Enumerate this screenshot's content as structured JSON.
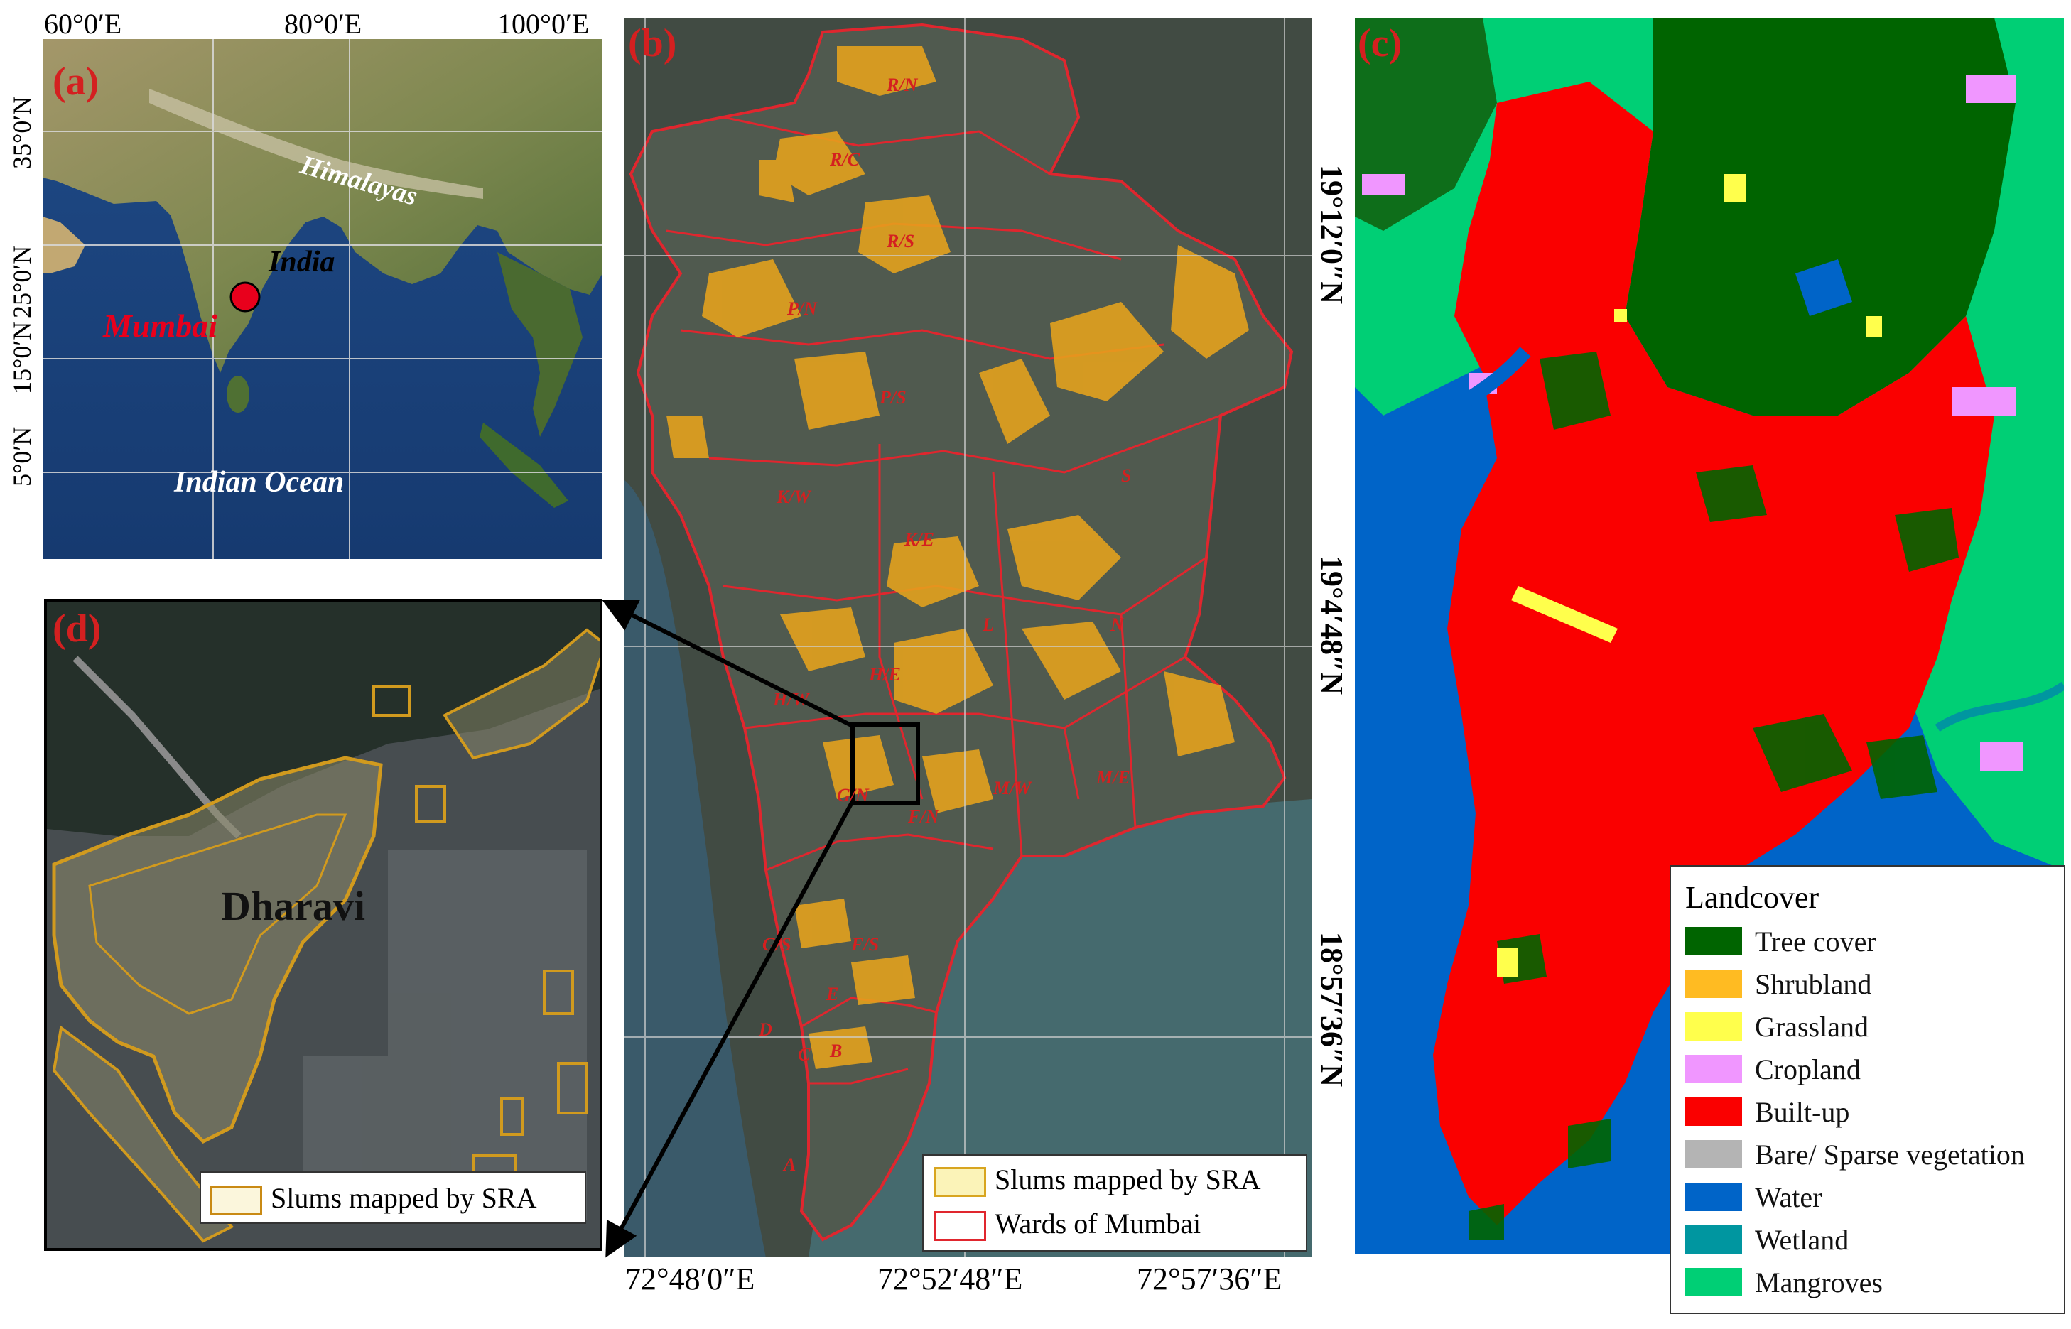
{
  "panel_a": {
    "label": "(a)",
    "top_ticks": [
      "60°0′E",
      "80°0′E",
      "100°0′E"
    ],
    "left_ticks": [
      "35°0′N",
      "25°0′N",
      "15°0′N",
      "5°0′N"
    ],
    "himalayas": "Himalayas",
    "india": "India",
    "mumbai": "Mumbai",
    "ocean": "Indian Ocean"
  },
  "panel_b": {
    "label": "(b)",
    "bottom_ticks": [
      "72°48′0″E",
      "72°52′48″E",
      "72°57′36″E"
    ],
    "right_ticks": [
      "19°12′0″N",
      "19°4′48″N",
      "18°57′36″N"
    ],
    "wards": [
      "R/N",
      "R/C",
      "R/S",
      "P/N",
      "P/S",
      "K/W",
      "K/E",
      "S",
      "L",
      "N",
      "H/W",
      "H/E",
      "G/N",
      "F/N",
      "M/W",
      "M/E",
      "G/S",
      "F/S",
      "E",
      "D",
      "B",
      "C",
      "A"
    ],
    "legend": {
      "slums": "Slums mapped by SRA",
      "wards": "Wards of Mumbai"
    }
  },
  "panel_c": {
    "label": "(c)",
    "legend_title": "Landcover",
    "classes": [
      {
        "name": "Tree cover",
        "color": "#006400"
      },
      {
        "name": "Shrubland",
        "color": "#ffbb22"
      },
      {
        "name": "Grassland",
        "color": "#ffff4c"
      },
      {
        "name": "Cropland",
        "color": "#f096ff"
      },
      {
        "name": "Built-up",
        "color": "#fa0000"
      },
      {
        "name": "Bare/ Sparse vegetation",
        "color": "#b4b4b4"
      },
      {
        "name": "Water",
        "color": "#0064c8"
      },
      {
        "name": "Wetland",
        "color": "#0096a0"
      },
      {
        "name": "Mangroves",
        "color": "#00cf75"
      }
    ]
  },
  "panel_d": {
    "label": "(d)",
    "place": "Dharavi",
    "legend": "Slums mapped by SRA"
  }
}
